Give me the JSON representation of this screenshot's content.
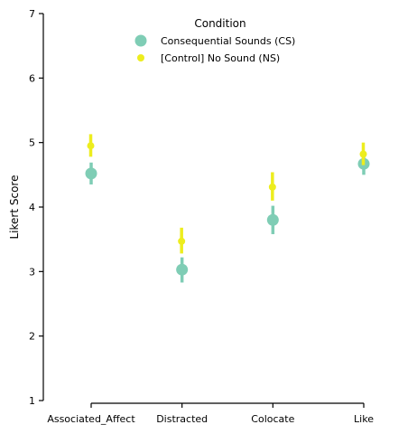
{
  "chart_data": {
    "type": "scatter",
    "title": "",
    "xlabel": "",
    "ylabel": "Likert Score",
    "ylim": [
      1,
      7
    ],
    "yticks": [
      1,
      2,
      3,
      4,
      5,
      6,
      7
    ],
    "categories": [
      "Associated_Affect",
      "Distracted",
      "Colocate",
      "Like"
    ],
    "grid": false,
    "legend": {
      "title": "Condition",
      "placement": "top-center"
    },
    "series": [
      {
        "name": "Consequential Sounds (CS)",
        "color": "#7fcdb5",
        "marker": "large-circle",
        "values": [
          4.52,
          3.03,
          3.8,
          4.67
        ],
        "ci_low": [
          4.35,
          2.83,
          3.58,
          4.5
        ],
        "ci_high": [
          4.69,
          3.22,
          4.02,
          4.83
        ]
      },
      {
        "name": "[Control] No Sound (NS)",
        "color": "#eded1e",
        "marker": "small-circle",
        "values": [
          4.95,
          3.47,
          4.31,
          4.82
        ],
        "ci_low": [
          4.78,
          3.28,
          4.1,
          4.65
        ],
        "ci_high": [
          5.13,
          3.68,
          4.54,
          5.0
        ]
      }
    ]
  }
}
